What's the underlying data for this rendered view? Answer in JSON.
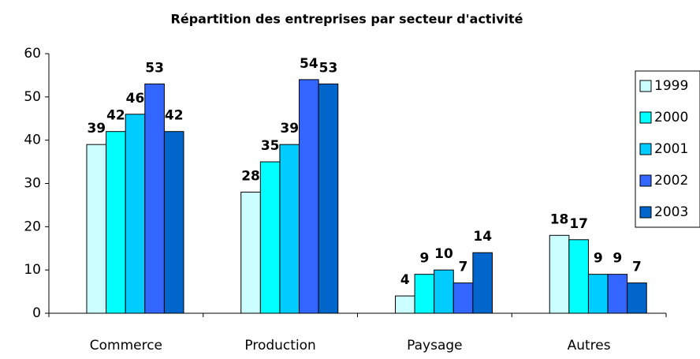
{
  "chart_data": {
    "type": "bar",
    "title": "Répartition des entreprises par secteur d'activité",
    "categories": [
      "Commerce",
      "Production",
      "Paysage",
      "Autres"
    ],
    "series": [
      {
        "name": "1999",
        "color": "#ccffff",
        "values": [
          39,
          28,
          4,
          18
        ]
      },
      {
        "name": "2000",
        "color": "#00ffff",
        "values": [
          42,
          35,
          9,
          17
        ]
      },
      {
        "name": "2001",
        "color": "#00ccff",
        "values": [
          46,
          39,
          10,
          9
        ]
      },
      {
        "name": "2002",
        "color": "#3366ff",
        "values": [
          53,
          54,
          7,
          9
        ]
      },
      {
        "name": "2003",
        "color": "#0066cc",
        "values": [
          42,
          53,
          14,
          7
        ]
      }
    ],
    "ylim": [
      0,
      60
    ],
    "yticks": [
      0,
      10,
      20,
      30,
      40,
      50,
      60
    ],
    "grid": false,
    "legend": "right"
  }
}
